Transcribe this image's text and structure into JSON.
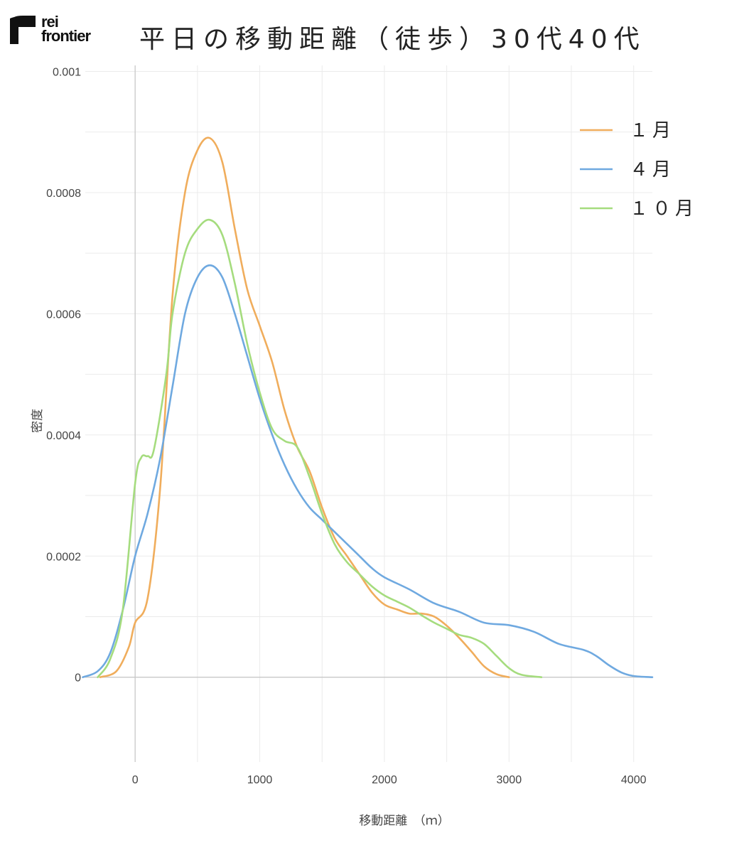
{
  "logo": {
    "line1": "rei",
    "line2": "frontier"
  },
  "chart_data": {
    "type": "line",
    "title": "平日の移動距離（徒歩）30代40代",
    "xlabel": "移動距離　（ｍ）",
    "ylabel": "密度",
    "xlim": [
      -400,
      4150
    ],
    "ylim": [
      -0.00014,
      0.00101
    ],
    "x_ticks": [
      0,
      1000,
      2000,
      3000,
      4000
    ],
    "x_tick_labels": [
      "0",
      "1000",
      "2000",
      "3000",
      "4000"
    ],
    "y_ticks": [
      0,
      0.0002,
      0.0004,
      0.0006,
      0.0008,
      0.001
    ],
    "y_tick_labels": [
      "0",
      "0.0002",
      "0.0004",
      "0.0006",
      "0.0008",
      "0.001"
    ],
    "grid": true,
    "legend_position": "top-right",
    "series": [
      {
        "name": "１月",
        "color": "#F0AD5C",
        "points": [
          [
            -280,
            0
          ],
          [
            -150,
            1e-05
          ],
          [
            -50,
            5e-05
          ],
          [
            0,
            9e-05
          ],
          [
            100,
            0.00013
          ],
          [
            200,
            0.00031
          ],
          [
            300,
            0.00063
          ],
          [
            400,
            0.0008
          ],
          [
            500,
            0.00087
          ],
          [
            600,
            0.00089
          ],
          [
            700,
            0.00085
          ],
          [
            800,
            0.00074
          ],
          [
            900,
            0.00064
          ],
          [
            1000,
            0.00058
          ],
          [
            1100,
            0.00052
          ],
          [
            1200,
            0.00044
          ],
          [
            1300,
            0.00038
          ],
          [
            1400,
            0.00034
          ],
          [
            1500,
            0.00028
          ],
          [
            1600,
            0.00023
          ],
          [
            1700,
            0.0002
          ],
          [
            1800,
            0.00017
          ],
          [
            1900,
            0.00014
          ],
          [
            2000,
            0.00012
          ],
          [
            2100,
            0.000112
          ],
          [
            2200,
            0.000105
          ],
          [
            2300,
            0.000105
          ],
          [
            2400,
            0.0001
          ],
          [
            2500,
            8.5e-05
          ],
          [
            2600,
            6.5e-05
          ],
          [
            2700,
            4.2e-05
          ],
          [
            2800,
            1.8e-05
          ],
          [
            2900,
            5e-06
          ],
          [
            3000,
            0
          ]
        ]
      },
      {
        "name": "４月",
        "color": "#6FA9E0",
        "points": [
          [
            -420,
            0
          ],
          [
            -300,
            1e-05
          ],
          [
            -200,
            4e-05
          ],
          [
            -100,
            0.00011
          ],
          [
            0,
            0.0002
          ],
          [
            100,
            0.00027
          ],
          [
            200,
            0.00036
          ],
          [
            300,
            0.00048
          ],
          [
            400,
            0.0006
          ],
          [
            500,
            0.00066
          ],
          [
            600,
            0.00068
          ],
          [
            700,
            0.00066
          ],
          [
            800,
            0.0006
          ],
          [
            900,
            0.00053
          ],
          [
            1000,
            0.00046
          ],
          [
            1100,
            0.0004
          ],
          [
            1200,
            0.00035
          ],
          [
            1300,
            0.00031
          ],
          [
            1400,
            0.00028
          ],
          [
            1500,
            0.00026
          ],
          [
            1600,
            0.00024
          ],
          [
            1700,
            0.00022
          ],
          [
            1800,
            0.0002
          ],
          [
            1900,
            0.00018
          ],
          [
            2000,
            0.000165
          ],
          [
            2200,
            0.000145
          ],
          [
            2400,
            0.000122
          ],
          [
            2600,
            0.000108
          ],
          [
            2800,
            9e-05
          ],
          [
            3000,
            8.6e-05
          ],
          [
            3200,
            7.5e-05
          ],
          [
            3400,
            5.5e-05
          ],
          [
            3600,
            4.5e-05
          ],
          [
            3700,
            3.5e-05
          ],
          [
            3800,
            2e-05
          ],
          [
            3900,
            8e-06
          ],
          [
            4000,
            2e-06
          ],
          [
            4150,
            0
          ]
        ]
      },
      {
        "name": "１０月",
        "color": "#A5DC7E",
        "points": [
          [
            -300,
            0
          ],
          [
            -200,
            3e-05
          ],
          [
            -100,
            0.00011
          ],
          [
            0,
            0.00032
          ],
          [
            50,
            0.000363
          ],
          [
            100,
            0.000365
          ],
          [
            150,
            0.000375
          ],
          [
            250,
            0.0005
          ],
          [
            300,
            0.0006
          ],
          [
            400,
            0.0007
          ],
          [
            500,
            0.00074
          ],
          [
            600,
            0.000755
          ],
          [
            700,
            0.00073
          ],
          [
            800,
            0.00065
          ],
          [
            900,
            0.00055
          ],
          [
            1000,
            0.00047
          ],
          [
            1100,
            0.00041
          ],
          [
            1200,
            0.00039
          ],
          [
            1300,
            0.00038
          ],
          [
            1400,
            0.00033
          ],
          [
            1500,
            0.00027
          ],
          [
            1600,
            0.00022
          ],
          [
            1700,
            0.00019
          ],
          [
            1800,
            0.00017
          ],
          [
            1900,
            0.00015
          ],
          [
            2000,
            0.000135
          ],
          [
            2100,
            0.000125
          ],
          [
            2200,
            0.000115
          ],
          [
            2300,
            0.000102
          ],
          [
            2400,
            9e-05
          ],
          [
            2500,
            8e-05
          ],
          [
            2600,
            7e-05
          ],
          [
            2700,
            6.5e-05
          ],
          [
            2800,
            5.5e-05
          ],
          [
            2900,
            3.5e-05
          ],
          [
            3000,
            1.5e-05
          ],
          [
            3100,
            4e-06
          ],
          [
            3260,
            0
          ]
        ]
      }
    ]
  }
}
